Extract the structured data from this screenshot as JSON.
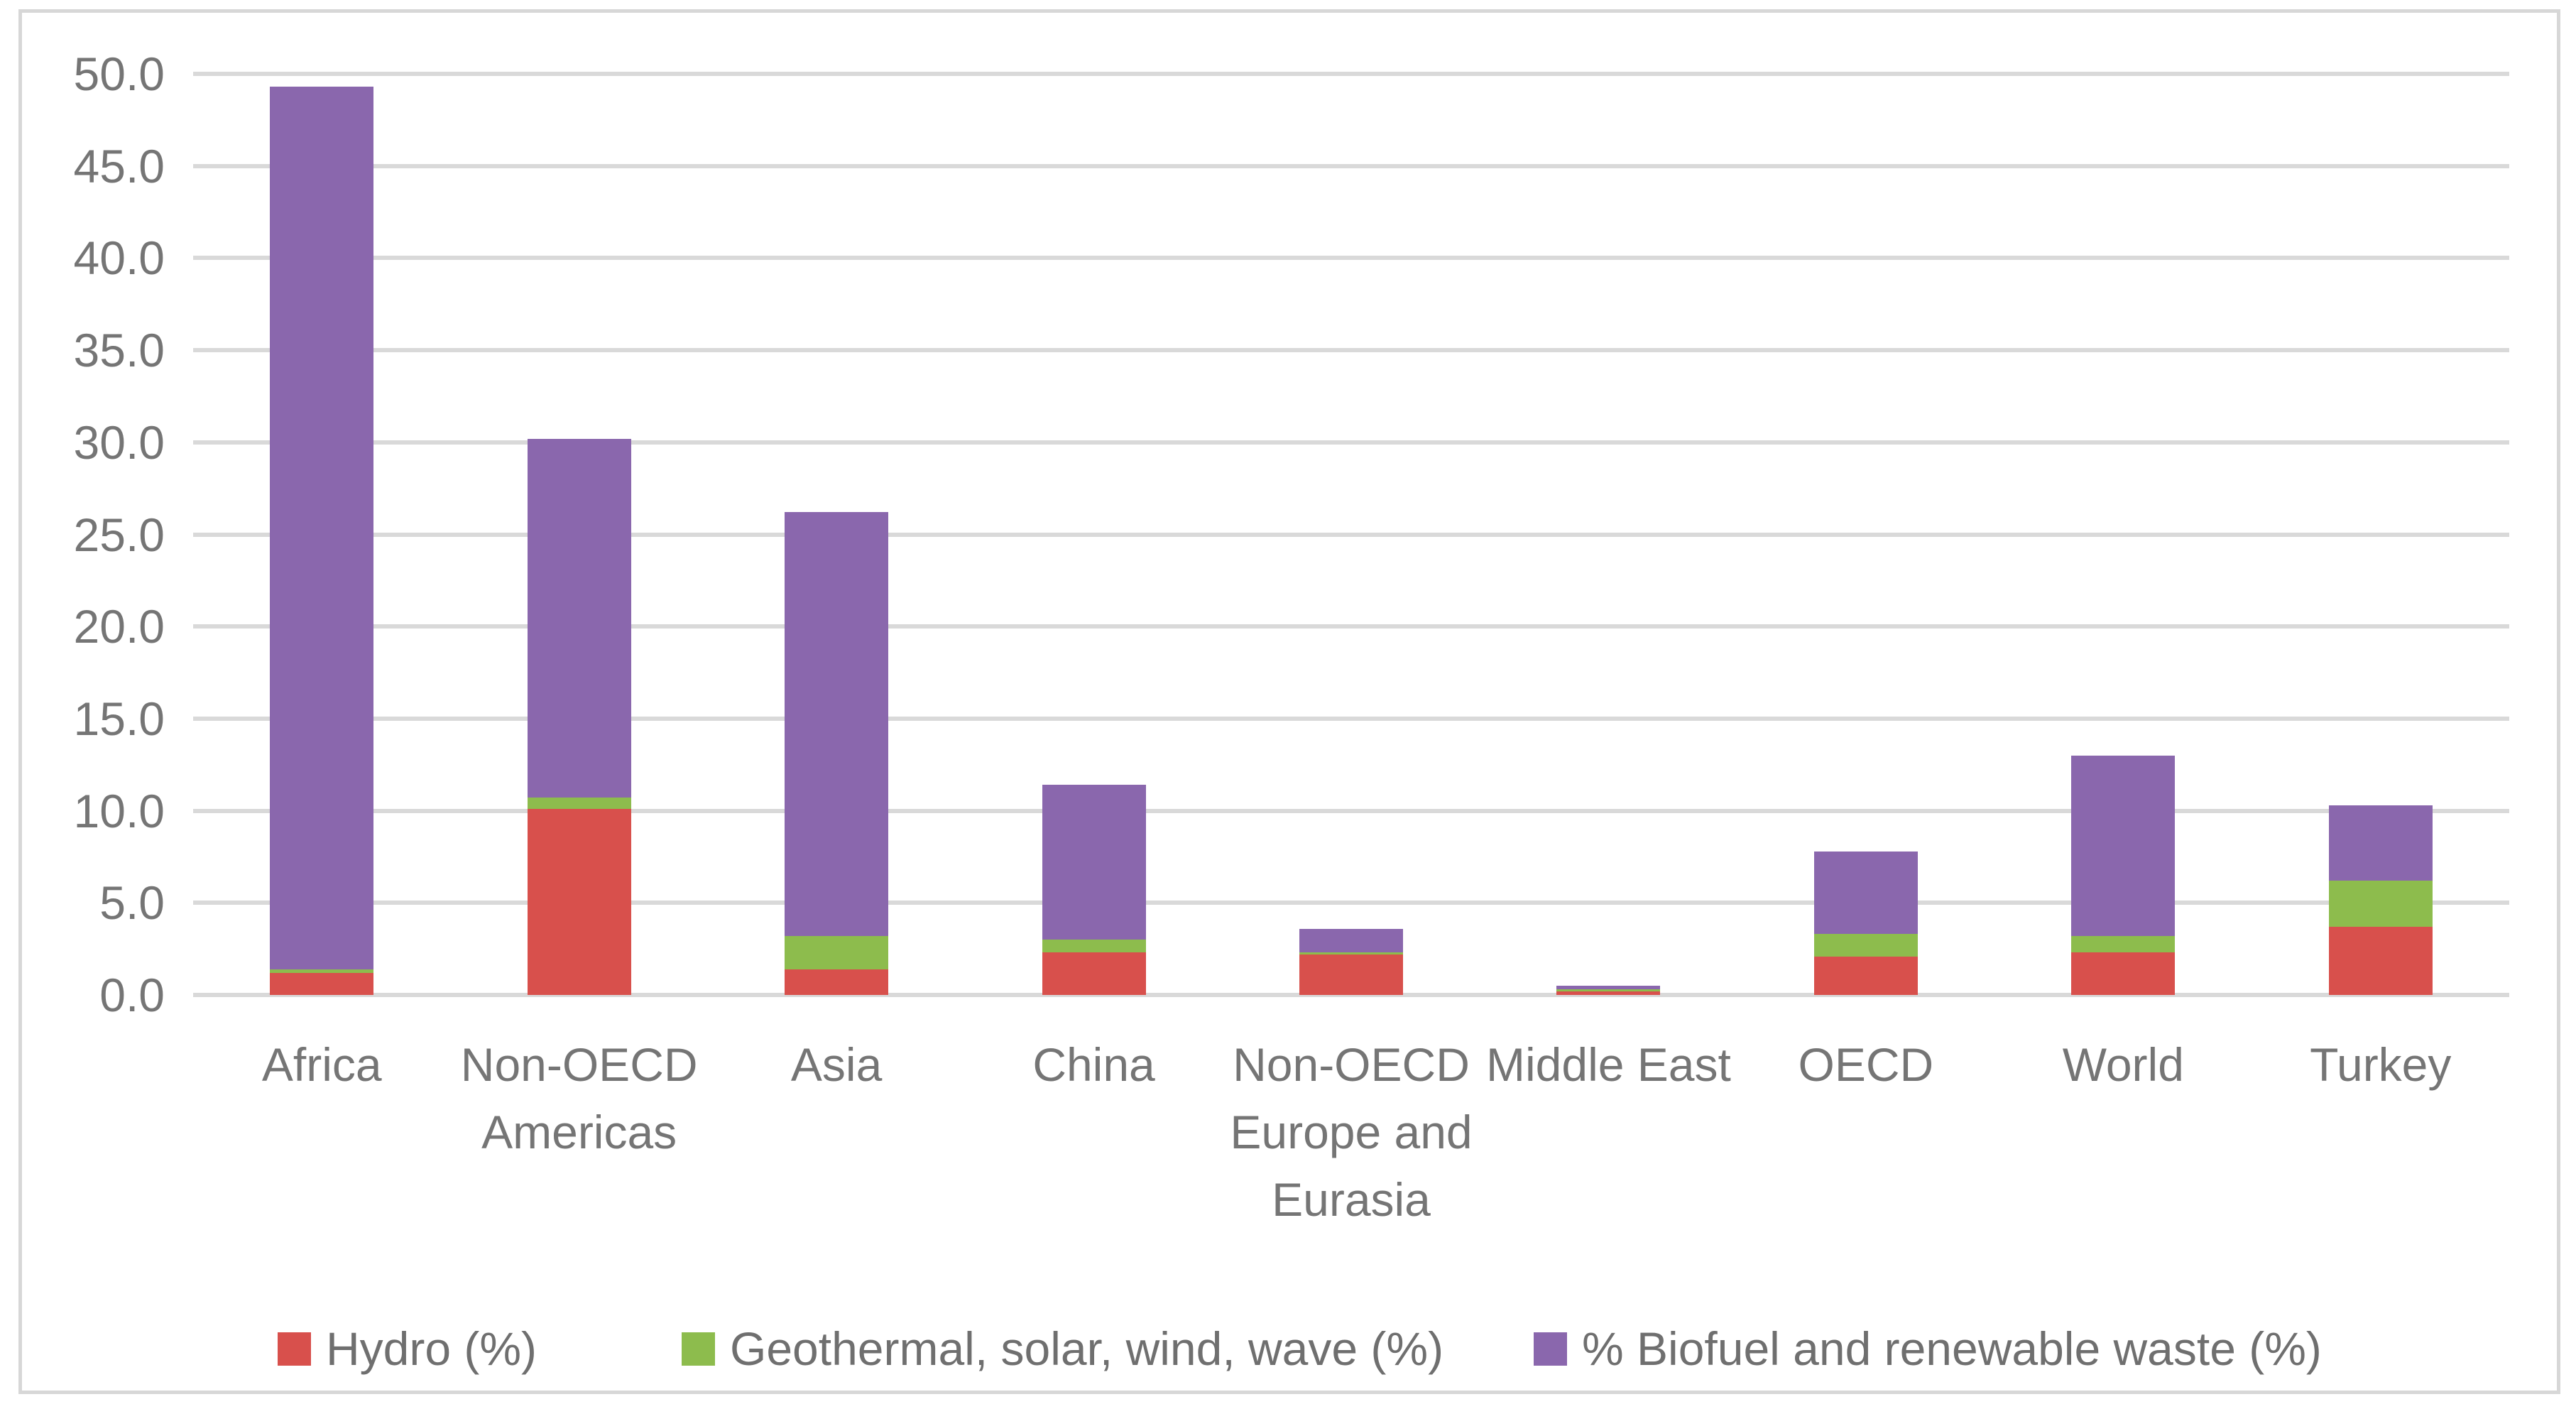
{
  "chart_data": {
    "type": "bar",
    "stacked": true,
    "title": "",
    "categories": [
      "Africa",
      "Non-OECD\nAmericas",
      "Asia",
      "China",
      "Non-OECD\nEurope and\nEurasia",
      "Middle East",
      "OECD",
      "World",
      "Turkey"
    ],
    "series": [
      {
        "name": "Hydro (%)",
        "color": "#d8504c",
        "values": [
          1.2,
          10.1,
          1.4,
          2.3,
          2.2,
          0.2,
          2.1,
          2.3,
          3.7
        ]
      },
      {
        "name": "Geothermal, solar, wind, wave (%)",
        "color": "#8dbc4d",
        "values": [
          0.2,
          0.6,
          1.8,
          0.7,
          0.1,
          0.1,
          1.2,
          0.9,
          2.5
        ]
      },
      {
        "name": "% Biofuel and renewable waste (%)",
        "color": "#8a67ad",
        "values": [
          47.9,
          19.5,
          23.0,
          8.4,
          1.3,
          0.2,
          4.5,
          9.8,
          4.1
        ]
      }
    ],
    "stack_totals": [
      49.3,
      30.2,
      26.2,
      11.4,
      3.6,
      0.5,
      7.8,
      13.0,
      10.3
    ],
    "xlabel": "",
    "ylabel": "",
    "y_axis": {
      "min": 0,
      "max": 50,
      "step": 5,
      "tick_labels": [
        "0.0",
        "5.0",
        "10.0",
        "15.0",
        "20.0",
        "25.0",
        "30.0",
        "35.0",
        "40.0",
        "45.0",
        "50.0"
      ]
    },
    "grid": true,
    "legend_position": "bottom"
  },
  "legend": {
    "items": [
      {
        "label": "Hydro (%)",
        "color": "#d8504c"
      },
      {
        "label": "Geothermal, solar, wind, wave (%)",
        "color": "#8dbc4d"
      },
      {
        "label": "% Biofuel and renewable waste (%)",
        "color": "#8a67ad"
      }
    ]
  },
  "colors": {
    "gridline": "#d9d9d9",
    "axis_text": "#757575",
    "legend_text": "#6f6f6f",
    "chart_border": "#d7d7d7",
    "background": "#ffffff"
  }
}
